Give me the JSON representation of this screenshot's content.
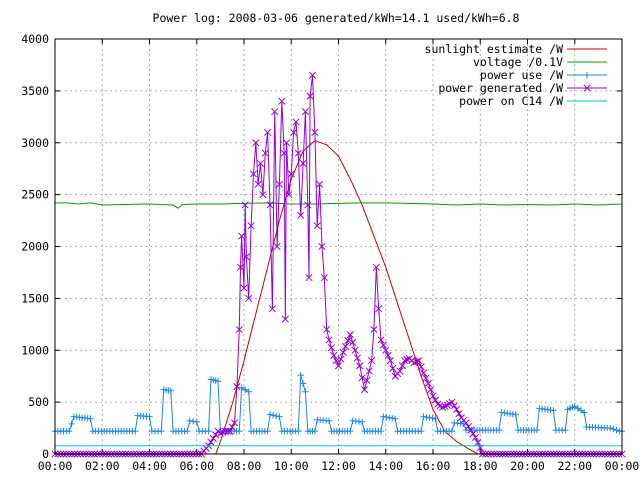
{
  "chart_data": {
    "type": "line",
    "title": "Power log: 2008-03-06 generated/kWh=14.1 used/kWh=6.8",
    "xlabel": "",
    "ylabel": "",
    "xlim": [
      0,
      24
    ],
    "ylim": [
      0,
      4000
    ],
    "x_ticks": [
      "00:00",
      "02:00",
      "04:00",
      "06:00",
      "08:00",
      "10:00",
      "12:00",
      "14:00",
      "16:00",
      "18:00",
      "20:00",
      "22:00",
      "00:00"
    ],
    "y_ticks": [
      0,
      500,
      1000,
      1500,
      2000,
      2500,
      3000,
      3500,
      4000
    ],
    "grid": true,
    "legend_position": "top-right",
    "series": [
      {
        "name": "sunlight estimate /W",
        "color": "#cc0000",
        "marker": "none",
        "points": [
          [
            6.8,
            0
          ],
          [
            7.0,
            120
          ],
          [
            7.5,
            480
          ],
          [
            8.0,
            900
          ],
          [
            8.5,
            1350
          ],
          [
            9.0,
            1800
          ],
          [
            9.5,
            2250
          ],
          [
            10.0,
            2650
          ],
          [
            10.5,
            2920
          ],
          [
            11.0,
            3020
          ],
          [
            11.5,
            2980
          ],
          [
            12.0,
            2870
          ],
          [
            12.5,
            2650
          ],
          [
            13.0,
            2400
          ],
          [
            13.5,
            2100
          ],
          [
            14.0,
            1800
          ],
          [
            14.5,
            1450
          ],
          [
            15.0,
            1100
          ],
          [
            15.5,
            750
          ],
          [
            16.0,
            430
          ],
          [
            16.5,
            220
          ],
          [
            17.0,
            120
          ],
          [
            17.5,
            50
          ],
          [
            17.9,
            0
          ]
        ]
      },
      {
        "name": "voltage /0.1V",
        "color": "#00a000",
        "marker": "none",
        "points": [
          [
            0,
            2420
          ],
          [
            0.5,
            2420
          ],
          [
            1,
            2410
          ],
          [
            1.5,
            2420
          ],
          [
            2,
            2400
          ],
          [
            3,
            2405
          ],
          [
            4,
            2410
          ],
          [
            5,
            2400
          ],
          [
            5.2,
            2370
          ],
          [
            5.4,
            2405
          ],
          [
            6,
            2410
          ],
          [
            7,
            2410
          ],
          [
            8,
            2415
          ],
          [
            9,
            2420
          ],
          [
            10,
            2410
          ],
          [
            11,
            2410
          ],
          [
            12,
            2415
          ],
          [
            13,
            2420
          ],
          [
            14,
            2420
          ],
          [
            15,
            2415
          ],
          [
            16,
            2410
          ],
          [
            17,
            2400
          ],
          [
            18,
            2410
          ],
          [
            19,
            2400
          ],
          [
            20,
            2405
          ],
          [
            21,
            2400
          ],
          [
            22,
            2410
          ],
          [
            23,
            2400
          ],
          [
            24,
            2410
          ]
        ]
      },
      {
        "name": "power use /W",
        "color": "#1e88e5",
        "marker": "+",
        "points": [
          [
            0,
            220
          ],
          [
            0.6,
            220
          ],
          [
            0.8,
            360
          ],
          [
            1.5,
            340
          ],
          [
            1.6,
            220
          ],
          [
            3.4,
            220
          ],
          [
            3.5,
            370
          ],
          [
            4.0,
            360
          ],
          [
            4.1,
            220
          ],
          [
            4.5,
            220
          ],
          [
            4.6,
            620
          ],
          [
            4.9,
            610
          ],
          [
            5.0,
            220
          ],
          [
            5.6,
            220
          ],
          [
            5.7,
            320
          ],
          [
            6.0,
            310
          ],
          [
            6.1,
            220
          ],
          [
            6.5,
            220
          ],
          [
            6.6,
            720
          ],
          [
            6.9,
            700
          ],
          [
            7.0,
            220
          ],
          [
            7.8,
            220
          ],
          [
            7.9,
            640
          ],
          [
            8.2,
            600
          ],
          [
            8.3,
            220
          ],
          [
            9.0,
            220
          ],
          [
            9.1,
            380
          ],
          [
            9.5,
            360
          ],
          [
            9.6,
            220
          ],
          [
            10.3,
            220
          ],
          [
            10.4,
            760
          ],
          [
            10.6,
            600
          ],
          [
            10.7,
            220
          ],
          [
            11.0,
            220
          ],
          [
            11.1,
            330
          ],
          [
            11.6,
            320
          ],
          [
            11.7,
            220
          ],
          [
            12.5,
            220
          ],
          [
            12.6,
            320
          ],
          [
            13.0,
            310
          ],
          [
            13.1,
            220
          ],
          [
            13.8,
            220
          ],
          [
            13.9,
            360
          ],
          [
            14.4,
            340
          ],
          [
            14.5,
            220
          ],
          [
            15.5,
            220
          ],
          [
            15.6,
            360
          ],
          [
            16.1,
            340
          ],
          [
            16.2,
            220
          ],
          [
            16.8,
            220
          ],
          [
            16.9,
            300
          ],
          [
            17.3,
            290
          ],
          [
            17.4,
            230
          ],
          [
            18.8,
            230
          ],
          [
            18.9,
            400
          ],
          [
            19.5,
            380
          ],
          [
            19.6,
            230
          ],
          [
            20.4,
            230
          ],
          [
            20.5,
            440
          ],
          [
            21.1,
            420
          ],
          [
            21.2,
            230
          ],
          [
            21.6,
            230
          ],
          [
            21.7,
            430
          ],
          [
            22.0,
            460
          ],
          [
            22.4,
            400
          ],
          [
            22.5,
            260
          ],
          [
            23.5,
            250
          ],
          [
            23.9,
            220
          ],
          [
            24.0,
            220
          ]
        ]
      },
      {
        "name": "power generated /W",
        "color": "#9400d3",
        "marker": "x",
        "points": [
          [
            0,
            0
          ],
          [
            6.2,
            0
          ],
          [
            6.3,
            30
          ],
          [
            6.5,
            80
          ],
          [
            6.7,
            150
          ],
          [
            6.9,
            220
          ],
          [
            7.0,
            200
          ],
          [
            7.2,
            220
          ],
          [
            7.4,
            220
          ],
          [
            7.6,
            300
          ],
          [
            7.7,
            650
          ],
          [
            7.8,
            1200
          ],
          [
            7.85,
            1800
          ],
          [
            7.9,
            2100
          ],
          [
            8.0,
            1600
          ],
          [
            8.05,
            2400
          ],
          [
            8.1,
            1900
          ],
          [
            8.2,
            1500
          ],
          [
            8.3,
            2200
          ],
          [
            8.4,
            2700
          ],
          [
            8.5,
            3000
          ],
          [
            8.6,
            2600
          ],
          [
            8.7,
            2800
          ],
          [
            8.8,
            2500
          ],
          [
            8.9,
            2900
          ],
          [
            9.0,
            3100
          ],
          [
            9.1,
            2400
          ],
          [
            9.2,
            1400
          ],
          [
            9.3,
            3300
          ],
          [
            9.4,
            2000
          ],
          [
            9.5,
            2600
          ],
          [
            9.6,
            3400
          ],
          [
            9.7,
            2900
          ],
          [
            9.75,
            1300
          ],
          [
            9.8,
            3000
          ],
          [
            9.9,
            2500
          ],
          [
            10.0,
            2700
          ],
          [
            10.1,
            3100
          ],
          [
            10.2,
            3200
          ],
          [
            10.3,
            2900
          ],
          [
            10.4,
            2300
          ],
          [
            10.5,
            2800
          ],
          [
            10.6,
            3300
          ],
          [
            10.7,
            2400
          ],
          [
            10.75,
            1700
          ],
          [
            10.8,
            3450
          ],
          [
            10.9,
            3650
          ],
          [
            11.0,
            3100
          ],
          [
            11.1,
            2200
          ],
          [
            11.2,
            2600
          ],
          [
            11.3,
            2000
          ],
          [
            11.4,
            1700
          ],
          [
            11.5,
            1200
          ],
          [
            11.6,
            1100
          ],
          [
            11.8,
            950
          ],
          [
            12.0,
            850
          ],
          [
            12.2,
            980
          ],
          [
            12.5,
            1150
          ],
          [
            12.7,
            1000
          ],
          [
            12.9,
            850
          ],
          [
            13.1,
            620
          ],
          [
            13.3,
            800
          ],
          [
            13.4,
            900
          ],
          [
            13.5,
            1200
          ],
          [
            13.6,
            1800
          ],
          [
            13.7,
            1400
          ],
          [
            13.8,
            1100
          ],
          [
            14.0,
            1000
          ],
          [
            14.2,
            900
          ],
          [
            14.4,
            750
          ],
          [
            14.6,
            800
          ],
          [
            14.8,
            900
          ],
          [
            15.0,
            920
          ],
          [
            15.2,
            880
          ],
          [
            15.4,
            900
          ],
          [
            15.6,
            780
          ],
          [
            15.8,
            680
          ],
          [
            16.0,
            560
          ],
          [
            16.2,
            480
          ],
          [
            16.4,
            450
          ],
          [
            16.6,
            470
          ],
          [
            16.8,
            500
          ],
          [
            17.0,
            430
          ],
          [
            17.2,
            350
          ],
          [
            17.4,
            300
          ],
          [
            17.6,
            230
          ],
          [
            17.8,
            160
          ],
          [
            18.0,
            60
          ],
          [
            18.1,
            0
          ],
          [
            24,
            0
          ]
        ]
      },
      {
        "name": "power on C14 /W",
        "color": "#00c8c8",
        "marker": "none",
        "points": [
          [
            0,
            80
          ],
          [
            24,
            80
          ]
        ]
      }
    ]
  }
}
